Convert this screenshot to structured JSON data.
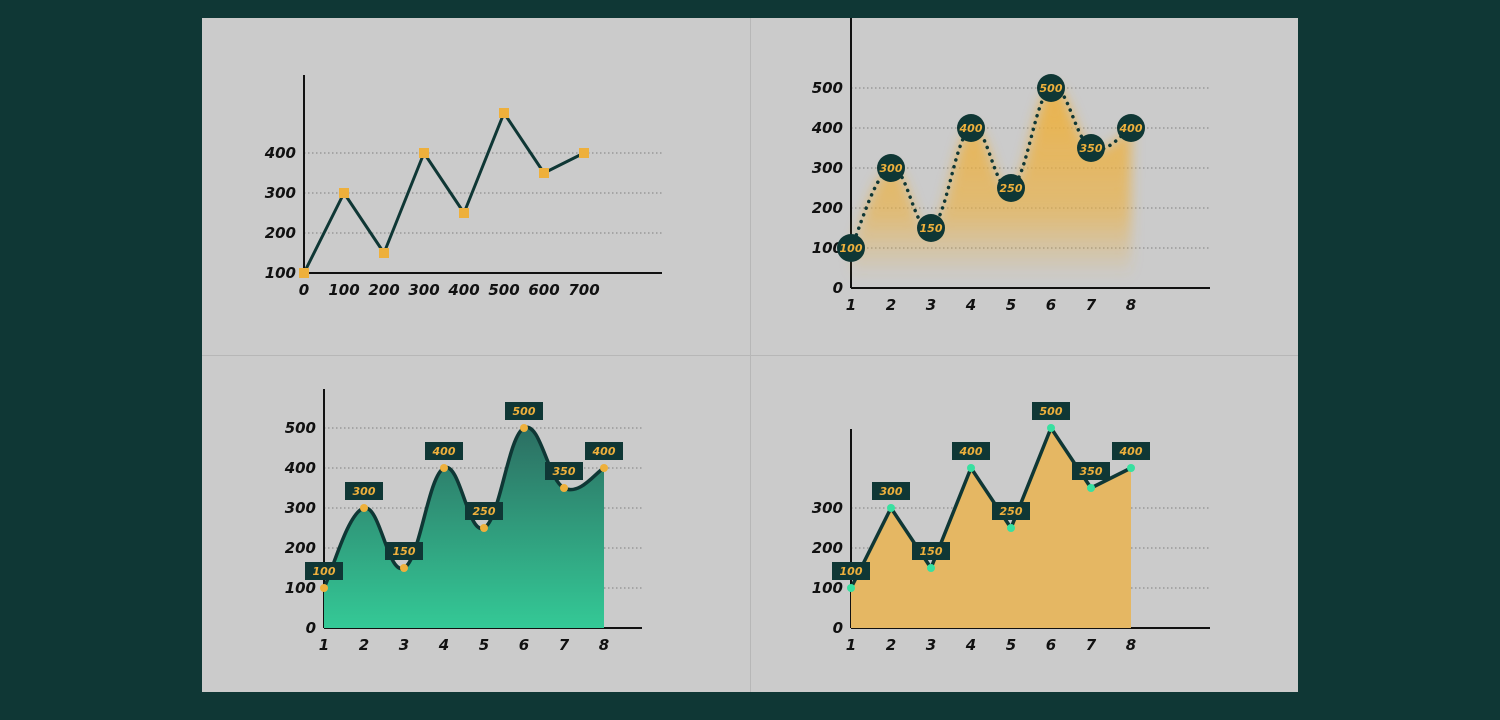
{
  "colors": {
    "background": "#0f3735",
    "panel": "#cbcbcb",
    "line": "#0f3735",
    "accent_orange": "#eeb03c",
    "teal_area_top": "#2c6e62",
    "teal_area_bottom": "#34c996",
    "mint_point": "#38e0a0",
    "gold_area": "#e5b763",
    "axis": "#111111",
    "grid": "#7f7f7f"
  },
  "chart_data": [
    {
      "type": "line",
      "marker": "square",
      "x": [
        0,
        100,
        200,
        300,
        400,
        500,
        600,
        700
      ],
      "series": [
        {
          "values": [
            100,
            300,
            150,
            400,
            250,
            500,
            350,
            400
          ]
        }
      ],
      "x_tick_labels": [
        "0",
        "100",
        "200",
        "300",
        "400",
        "500",
        "600",
        "700"
      ],
      "y_ticks": [
        100,
        200,
        300,
        400
      ],
      "y_tick_labels": [
        "100",
        "200",
        "300",
        "400"
      ],
      "ylim": [
        100,
        400
      ],
      "grid": "horizontal dotted",
      "title": "",
      "xlabel": "",
      "ylabel": ""
    },
    {
      "type": "area",
      "style": "dotted line with circular value labels and faded gold area",
      "x": [
        1,
        2,
        3,
        4,
        5,
        6,
        7,
        8
      ],
      "series": [
        {
          "values": [
            100,
            300,
            150,
            400,
            250,
            500,
            350,
            400
          ]
        }
      ],
      "data_labels": [
        "100",
        "300",
        "150",
        "400",
        "250",
        "500",
        "350",
        "400"
      ],
      "x_tick_labels": [
        "1",
        "2",
        "3",
        "4",
        "5",
        "6",
        "7",
        "8"
      ],
      "y_ticks": [
        0,
        100,
        200,
        300,
        400,
        500
      ],
      "y_tick_labels": [
        "0",
        "100",
        "200",
        "300",
        "400",
        "500"
      ],
      "ylim": [
        0,
        500
      ],
      "grid": "horizontal dotted",
      "title": "",
      "xlabel": "",
      "ylabel": ""
    },
    {
      "type": "area",
      "style": "smooth curve with teal gradient fill and boxed value labels",
      "x": [
        1,
        2,
        3,
        4,
        5,
        6,
        7,
        8
      ],
      "series": [
        {
          "values": [
            100,
            300,
            150,
            400,
            250,
            500,
            350,
            400
          ]
        }
      ],
      "data_labels": [
        "100",
        "300",
        "150",
        "400",
        "250",
        "500",
        "350",
        "400"
      ],
      "x_tick_labels": [
        "1",
        "2",
        "3",
        "4",
        "5",
        "6",
        "7",
        "8"
      ],
      "y_ticks": [
        0,
        100,
        200,
        300,
        400,
        500
      ],
      "y_tick_labels": [
        "0",
        "100",
        "200",
        "300",
        "400",
        "500"
      ],
      "ylim": [
        0,
        500
      ],
      "grid": "horizontal dotted",
      "title": "",
      "xlabel": "",
      "ylabel": ""
    },
    {
      "type": "area",
      "style": "straight line with solid gold fill and boxed value labels",
      "x": [
        1,
        2,
        3,
        4,
        5,
        6,
        7,
        8
      ],
      "series": [
        {
          "values": [
            100,
            300,
            150,
            400,
            250,
            500,
            350,
            400
          ]
        }
      ],
      "data_labels": [
        "100",
        "300",
        "150",
        "400",
        "250",
        "500",
        "350",
        "400"
      ],
      "x_tick_labels": [
        "1",
        "2",
        "3",
        "4",
        "5",
        "6",
        "7",
        "8"
      ],
      "y_ticks": [
        0,
        100,
        200,
        300
      ],
      "y_tick_labels": [
        "0",
        "100",
        "200",
        "300"
      ],
      "ylim": [
        0,
        500
      ],
      "grid": "horizontal dotted",
      "title": "",
      "xlabel": "",
      "ylabel": ""
    }
  ]
}
